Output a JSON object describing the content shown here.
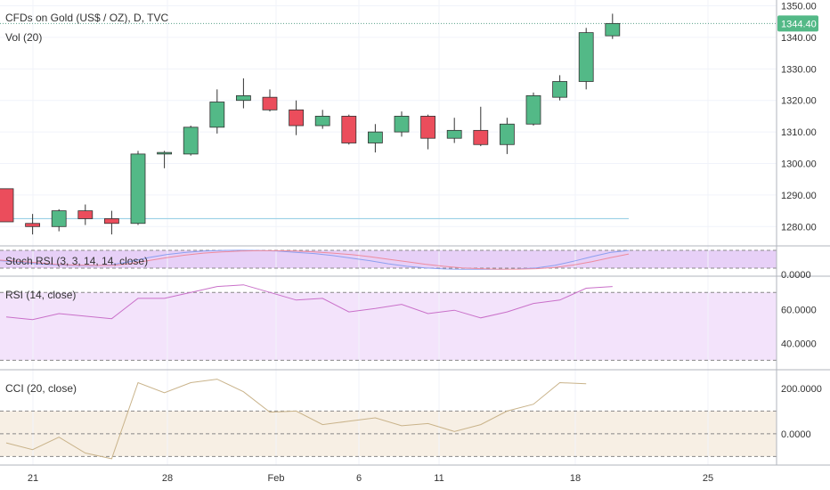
{
  "colors": {
    "up": "#53b987",
    "down": "#eb4d5c",
    "rsi_line": "#c970c9",
    "rsi_band": "#f3e3fb",
    "stoch_band": "#e7d0f7",
    "stoch_k": "#8c9ff0",
    "stoch_d": "#ee8b9e",
    "cci_line": "#c9b38a",
    "cci_band": "#f7efe4",
    "last_price_line": "#5ba08a",
    "support_line": "#9ad0e6"
  },
  "chart_data": [
    {
      "type": "candlestick",
      "title": "CFDs on Gold (US$ / OZ), D, TVC",
      "legend": [
        "Vol (20)"
      ],
      "x_ticks": [
        "21",
        "28",
        "Feb",
        "6",
        "11",
        "18",
        "25"
      ],
      "y_ticks": [
        "1280.00",
        "1290.00",
        "1300.00",
        "1310.00",
        "1320.00",
        "1330.00",
        "1340.00",
        "1350.00"
      ],
      "ylim": [
        1275,
        1351
      ],
      "last_price": "1344.40",
      "support_level": 1282.5,
      "candles": [
        {
          "o": 1292.0,
          "h": 1292.0,
          "l": 1281.5,
          "c": 1281.5
        },
        {
          "o": 1281.0,
          "h": 1284.0,
          "l": 1277.5,
          "c": 1280.0
        },
        {
          "o": 1280.0,
          "h": 1285.5,
          "l": 1278.5,
          "c": 1285.0
        },
        {
          "o": 1285.0,
          "h": 1287.0,
          "l": 1280.5,
          "c": 1282.5
        },
        {
          "o": 1282.5,
          "h": 1285.0,
          "l": 1277.5,
          "c": 1281.0
        },
        {
          "o": 1281.0,
          "h": 1304.0,
          "l": 1280.5,
          "c": 1303.0
        },
        {
          "o": 1303.0,
          "h": 1304.0,
          "l": 1298.5,
          "c": 1303.5
        },
        {
          "o": 1303.0,
          "h": 1312.0,
          "l": 1302.5,
          "c": 1311.5
        },
        {
          "o": 1311.5,
          "h": 1323.5,
          "l": 1309.5,
          "c": 1319.5
        },
        {
          "o": 1320.0,
          "h": 1327.0,
          "l": 1317.5,
          "c": 1321.5
        },
        {
          "o": 1321.0,
          "h": 1323.5,
          "l": 1316.5,
          "c": 1317.0
        },
        {
          "o": 1317.0,
          "h": 1320.0,
          "l": 1309.0,
          "c": 1312.0
        },
        {
          "o": 1312.0,
          "h": 1317.0,
          "l": 1311.0,
          "c": 1315.0
        },
        {
          "o": 1315.0,
          "h": 1315.5,
          "l": 1306.0,
          "c": 1306.5
        },
        {
          "o": 1306.5,
          "h": 1312.5,
          "l": 1303.5,
          "c": 1310.0
        },
        {
          "o": 1310.0,
          "h": 1316.5,
          "l": 1308.5,
          "c": 1315.0
        },
        {
          "o": 1315.0,
          "h": 1315.5,
          "l": 1304.5,
          "c": 1308.0
        },
        {
          "o": 1308.0,
          "h": 1314.5,
          "l": 1306.5,
          "c": 1310.5
        },
        {
          "o": 1310.5,
          "h": 1318.0,
          "l": 1305.5,
          "c": 1306.0
        },
        {
          "o": 1306.0,
          "h": 1314.5,
          "l": 1303.0,
          "c": 1312.5
        },
        {
          "o": 1312.5,
          "h": 1322.5,
          "l": 1312.0,
          "c": 1321.5
        },
        {
          "o": 1321.0,
          "h": 1328.0,
          "l": 1320.0,
          "c": 1326.0
        },
        {
          "o": 1326.0,
          "h": 1343.0,
          "l": 1323.5,
          "c": 1341.5
        },
        {
          "o": 1340.5,
          "h": 1347.5,
          "l": 1339.5,
          "c": 1344.4
        }
      ]
    },
    {
      "type": "line",
      "title": "Stoch RSI (3, 3, 14, 14, close)",
      "y_ticks": [
        "0.0000"
      ],
      "series": [
        {
          "values": [
            45,
            38,
            30,
            25,
            22,
            20,
            25,
            40,
            60,
            75,
            85,
            92,
            95,
            96,
            95,
            92,
            86,
            80,
            70,
            58,
            45,
            30,
            18,
            10,
            5,
            3,
            3,
            3,
            5,
            10,
            22,
            42,
            65,
            85,
            95
          ]
        },
        {
          "values": [
            48,
            42,
            35,
            28,
            24,
            22,
            22,
            30,
            45,
            60,
            72,
            82,
            88,
            92,
            94,
            94,
            92,
            88,
            82,
            75,
            65,
            52,
            40,
            28,
            18,
            10,
            6,
            4,
            4,
            6,
            12,
            24,
            40,
            60,
            78
          ]
        }
      ]
    },
    {
      "type": "line",
      "title": "RSI (14, close)",
      "y_ticks": [
        "40.0000",
        "60.0000"
      ],
      "band": [
        30,
        70
      ],
      "ylim": [
        26,
        78
      ],
      "values": [
        55.5,
        54,
        57.5,
        56,
        54.5,
        66.5,
        66.5,
        70,
        73.5,
        74.5,
        70,
        65.5,
        66.5,
        58.5,
        60.5,
        63,
        57.5,
        59.5,
        55,
        58.5,
        63.5,
        65.5,
        72.5,
        73.5
      ]
    },
    {
      "type": "line",
      "title": "CCI (20, close)",
      "y_ticks": [
        "0.0000",
        "200.0000"
      ],
      "band": [
        -100,
        100
      ],
      "ylim": [
        -130,
        270
      ],
      "values": [
        -40,
        -70,
        -15,
        -85,
        -110,
        225,
        180,
        225,
        240,
        185,
        95,
        100,
        40,
        55,
        70,
        35,
        45,
        10,
        40,
        100,
        130,
        225,
        220
      ]
    }
  ]
}
